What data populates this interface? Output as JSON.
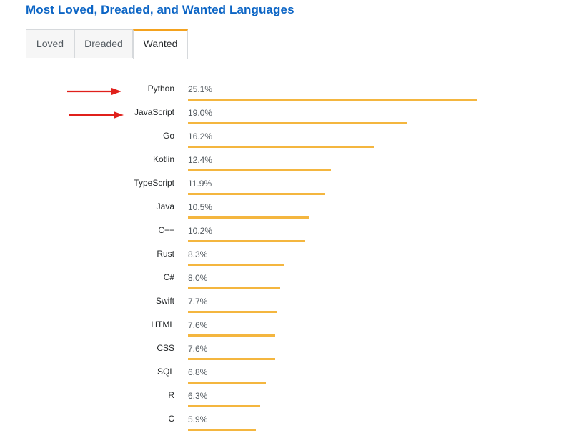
{
  "title": "Most Loved, Dreaded, and Wanted Languages",
  "tabs": [
    {
      "label": "Loved",
      "active": false
    },
    {
      "label": "Dreaded",
      "active": false
    },
    {
      "label": "Wanted",
      "active": true
    }
  ],
  "colors": {
    "title": "#0c65c5",
    "bar": "#f4b63f",
    "tab_accent": "#f4a21e",
    "arrow": "#e0201b"
  },
  "chart_data": {
    "type": "bar",
    "orientation": "horizontal",
    "title": "",
    "xlabel": "",
    "ylabel": "",
    "xlim": [
      0,
      25.1
    ],
    "unit": "%",
    "categories": [
      "Python",
      "JavaScript",
      "Go",
      "Kotlin",
      "TypeScript",
      "Java",
      "C++",
      "Rust",
      "C#",
      "Swift",
      "HTML",
      "CSS",
      "SQL",
      "R",
      "C"
    ],
    "values": [
      25.1,
      19.0,
      16.2,
      12.4,
      11.9,
      10.5,
      10.2,
      8.3,
      8.0,
      7.7,
      7.6,
      7.6,
      6.8,
      6.3,
      5.9
    ],
    "value_labels": [
      "25.1%",
      "19.0%",
      "16.2%",
      "12.4%",
      "11.9%",
      "10.5%",
      "10.2%",
      "8.3%",
      "8.0%",
      "7.7%",
      "7.6%",
      "7.6%",
      "6.8%",
      "6.3%",
      "5.9%"
    ],
    "annotations": [
      {
        "type": "arrow",
        "target": "Python",
        "color": "#e0201b"
      },
      {
        "type": "arrow",
        "target": "JavaScript",
        "color": "#e0201b"
      }
    ]
  }
}
